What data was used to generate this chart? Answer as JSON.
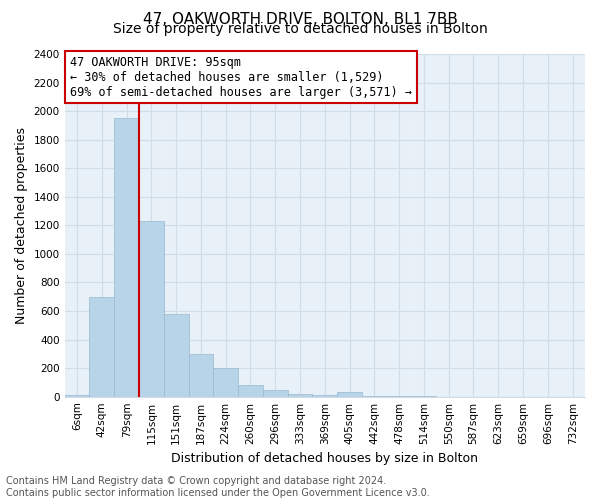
{
  "title": "47, OAKWORTH DRIVE, BOLTON, BL1 7BB",
  "subtitle": "Size of property relative to detached houses in Bolton",
  "xlabel": "Distribution of detached houses by size in Bolton",
  "ylabel": "Number of detached properties",
  "bar_labels": [
    "6sqm",
    "42sqm",
    "79sqm",
    "115sqm",
    "151sqm",
    "187sqm",
    "224sqm",
    "260sqm",
    "296sqm",
    "333sqm",
    "369sqm",
    "405sqm",
    "442sqm",
    "478sqm",
    "514sqm",
    "550sqm",
    "587sqm",
    "623sqm",
    "659sqm",
    "696sqm",
    "732sqm"
  ],
  "bar_values": [
    15,
    700,
    1950,
    1230,
    580,
    300,
    200,
    80,
    45,
    20,
    10,
    35,
    5,
    3,
    2,
    0,
    0,
    0,
    0,
    0,
    0
  ],
  "bar_color": "#b8d4e8",
  "bar_edge_color": "#9ab8d0",
  "vline_color": "#cc0000",
  "ylim": [
    0,
    2400
  ],
  "yticks": [
    0,
    200,
    400,
    600,
    800,
    1000,
    1200,
    1400,
    1600,
    1800,
    2000,
    2200,
    2400
  ],
  "annotation_title": "47 OAKWORTH DRIVE: 95sqm",
  "annotation_line1": "← 30% of detached houses are smaller (1,529)",
  "annotation_line2": "69% of semi-detached houses are larger (3,571) →",
  "box_edge_color": "#cc0000",
  "footer_line1": "Contains HM Land Registry data © Crown copyright and database right 2024.",
  "footer_line2": "Contains public sector information licensed under the Open Government Licence v3.0.",
  "grid_color": "#d0dce8",
  "bg_color": "#e8f0f8",
  "title_fontsize": 11,
  "subtitle_fontsize": 10,
  "axis_label_fontsize": 9,
  "tick_fontsize": 7.5,
  "annotation_fontsize": 8.5,
  "footer_fontsize": 7
}
